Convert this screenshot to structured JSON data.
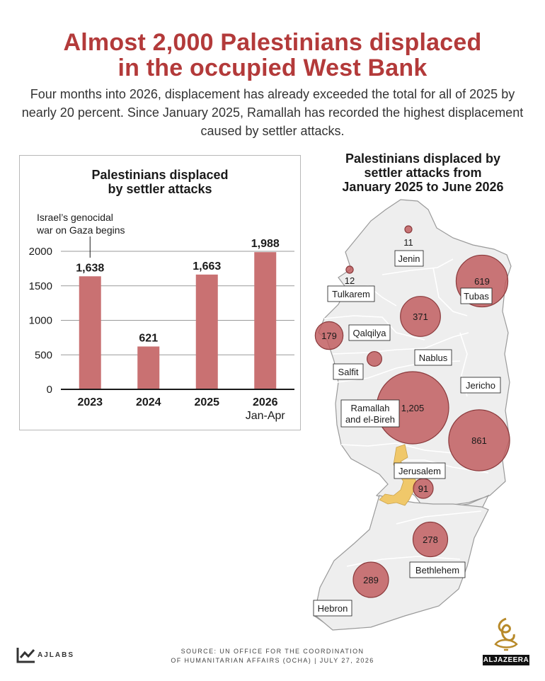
{
  "headline": "Almost 2,000 Palestinians displaced in the occupied West Bank",
  "headline_lines": [
    "Almost 2,000 Palestinians displaced",
    "in the occupied West Bank"
  ],
  "subhead": "Four months into 2026, displacement has already exceeded the total for all of 2025 by nearly 20 percent. Since January 2025, Ramallah has recorded the highest displacement caused by settler attacks.",
  "colors": {
    "accent": "#b33a3a",
    "bar": "#c97172",
    "bubble": "#c0595c",
    "jerusalem": "#f0c86a",
    "map_fill": "#eeeeee"
  },
  "chart_data": [
    {
      "type": "bar",
      "title": "Palestinians displaced by settler attacks",
      "title_lines": [
        "Palestinians displaced",
        "by settler attacks"
      ],
      "categories": [
        "2023",
        "2024",
        "2025",
        "2026"
      ],
      "category_sublabels": [
        "",
        "",
        "",
        "Jan-Apr"
      ],
      "values": [
        1638,
        621,
        1663,
        1988
      ],
      "value_labels": [
        "1,638",
        "621",
        "1,663",
        "1,988"
      ],
      "yticks": [
        0,
        500,
        1000,
        1500,
        2000
      ],
      "ylim": [
        0,
        2000
      ],
      "grid": true,
      "annotation": {
        "text_lines": [
          "Israel’s genocidal",
          "war on Gaza begins"
        ],
        "category": "2023"
      }
    },
    {
      "type": "bubble-map",
      "title": "Palestinians displaced by settler attacks from January 2025 to June 2026",
      "title_lines": [
        "Palestinians displaced by",
        "settler attacks from",
        "January 2025 to June 2026"
      ],
      "regions": [
        {
          "name": "Jenin",
          "value": 11
        },
        {
          "name": "Tulkarem",
          "value": 12
        },
        {
          "name": "Tubas",
          "value": 619
        },
        {
          "name": "Nablus",
          "value": 371
        },
        {
          "name": "Qalqilya",
          "value": 179
        },
        {
          "name": "Salfit",
          "value": 50
        },
        {
          "name": "Ramallah and el-Bireh",
          "value": 1205
        },
        {
          "name": "Jericho",
          "value": 861
        },
        {
          "name": "Jerusalem",
          "value": 91
        },
        {
          "name": "Bethlehem",
          "value": 278
        },
        {
          "name": "Hebron",
          "value": 289
        }
      ]
    }
  ],
  "footer": {
    "source_lines": [
      "SOURCE:  UN OFFICE FOR THE COORDINATION",
      "OF HUMANITARIAN AFFAIRS (OCHA)  |  JULY 27, 2026"
    ],
    "brand_left": "AJLABS",
    "brand_right": "ALJAZEERA"
  }
}
